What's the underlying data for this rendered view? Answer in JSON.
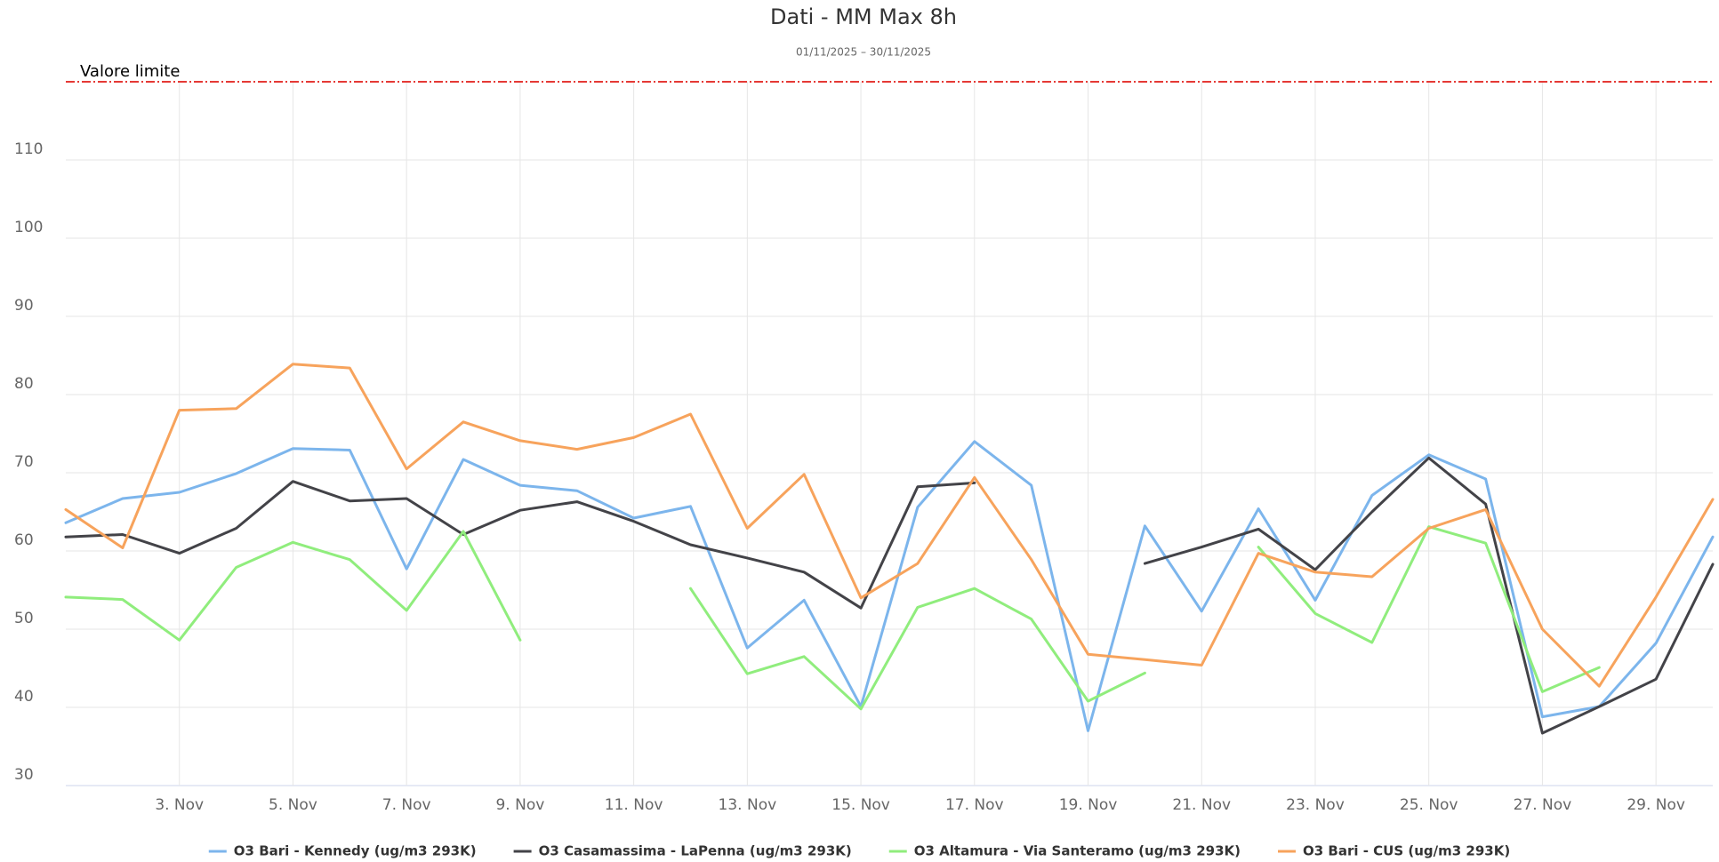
{
  "chart_data": {
    "type": "line",
    "title": "Dati - MM Max 8h",
    "subtitle": "01/11/2025 – 30/11/2025",
    "categories": [
      null,
      null,
      "3. Nov",
      null,
      "5. Nov",
      null,
      "7. Nov",
      null,
      "9. Nov",
      null,
      "11. Nov",
      null,
      "13. Nov",
      null,
      "15. Nov",
      null,
      "17. Nov",
      null,
      "19. Nov",
      null,
      "21. Nov",
      null,
      "23. Nov",
      null,
      "25. Nov",
      null,
      "27. Nov",
      null,
      "29. Nov",
      null
    ],
    "ylim": [
      30,
      120
    ],
    "yticks": [
      30,
      40,
      50,
      60,
      70,
      80,
      90,
      100,
      110
    ],
    "grid": true,
    "legend": "bottom",
    "plot_line": {
      "value": 120,
      "label": "Valore limite",
      "color": "#e53935"
    },
    "series": [
      {
        "name": "O3 Bari - Kennedy (ug/m3 293K)",
        "color": "#7cb5ec",
        "values": [
          63.6,
          66.7,
          67.5,
          69.9,
          73.1,
          72.9,
          57.7,
          71.7,
          68.4,
          67.7,
          64.2,
          65.7,
          47.6,
          53.7,
          40.1,
          65.6,
          74.0,
          68.4,
          37.0,
          63.2,
          52.3,
          65.4,
          53.7,
          67.1,
          72.3,
          69.2,
          38.8,
          40.1,
          48.2,
          61.8
        ]
      },
      {
        "name": "O3 Casamassima - LaPenna (ug/m3 293K)",
        "color": "#434348",
        "values": [
          61.8,
          62.1,
          59.7,
          62.9,
          68.9,
          66.4,
          66.7,
          62.1,
          65.2,
          66.3,
          63.8,
          60.8,
          59.1,
          57.3,
          52.7,
          68.2,
          68.7,
          null,
          null,
          58.4,
          60.5,
          62.8,
          57.6,
          65.0,
          71.9,
          66.0,
          36.7,
          40.1,
          43.6,
          58.3
        ]
      },
      {
        "name": "O3 Altamura - Via Santeramo (ug/m3 293K)",
        "color": "#90ed7d",
        "values": [
          54.1,
          53.8,
          48.6,
          57.9,
          61.1,
          58.9,
          52.4,
          62.5,
          48.6,
          null,
          null,
          55.2,
          44.3,
          46.5,
          39.8,
          52.8,
          55.2,
          51.3,
          40.8,
          44.4,
          null,
          60.5,
          52.0,
          48.3,
          63.1,
          61.0,
          42.0,
          45.1,
          null,
          null
        ]
      },
      {
        "name": "O3 Bari - CUS (ug/m3 293K)",
        "color": "#f7a35c",
        "values": [
          65.3,
          60.4,
          78.0,
          78.2,
          83.9,
          83.4,
          70.5,
          76.5,
          74.1,
          73.0,
          74.5,
          77.5,
          62.9,
          69.8,
          54.0,
          58.4,
          69.4,
          58.9,
          46.8,
          46.1,
          45.4,
          59.7,
          57.3,
          56.7,
          62.9,
          65.3,
          50.0,
          42.7,
          54.1,
          66.6
        ]
      }
    ]
  }
}
